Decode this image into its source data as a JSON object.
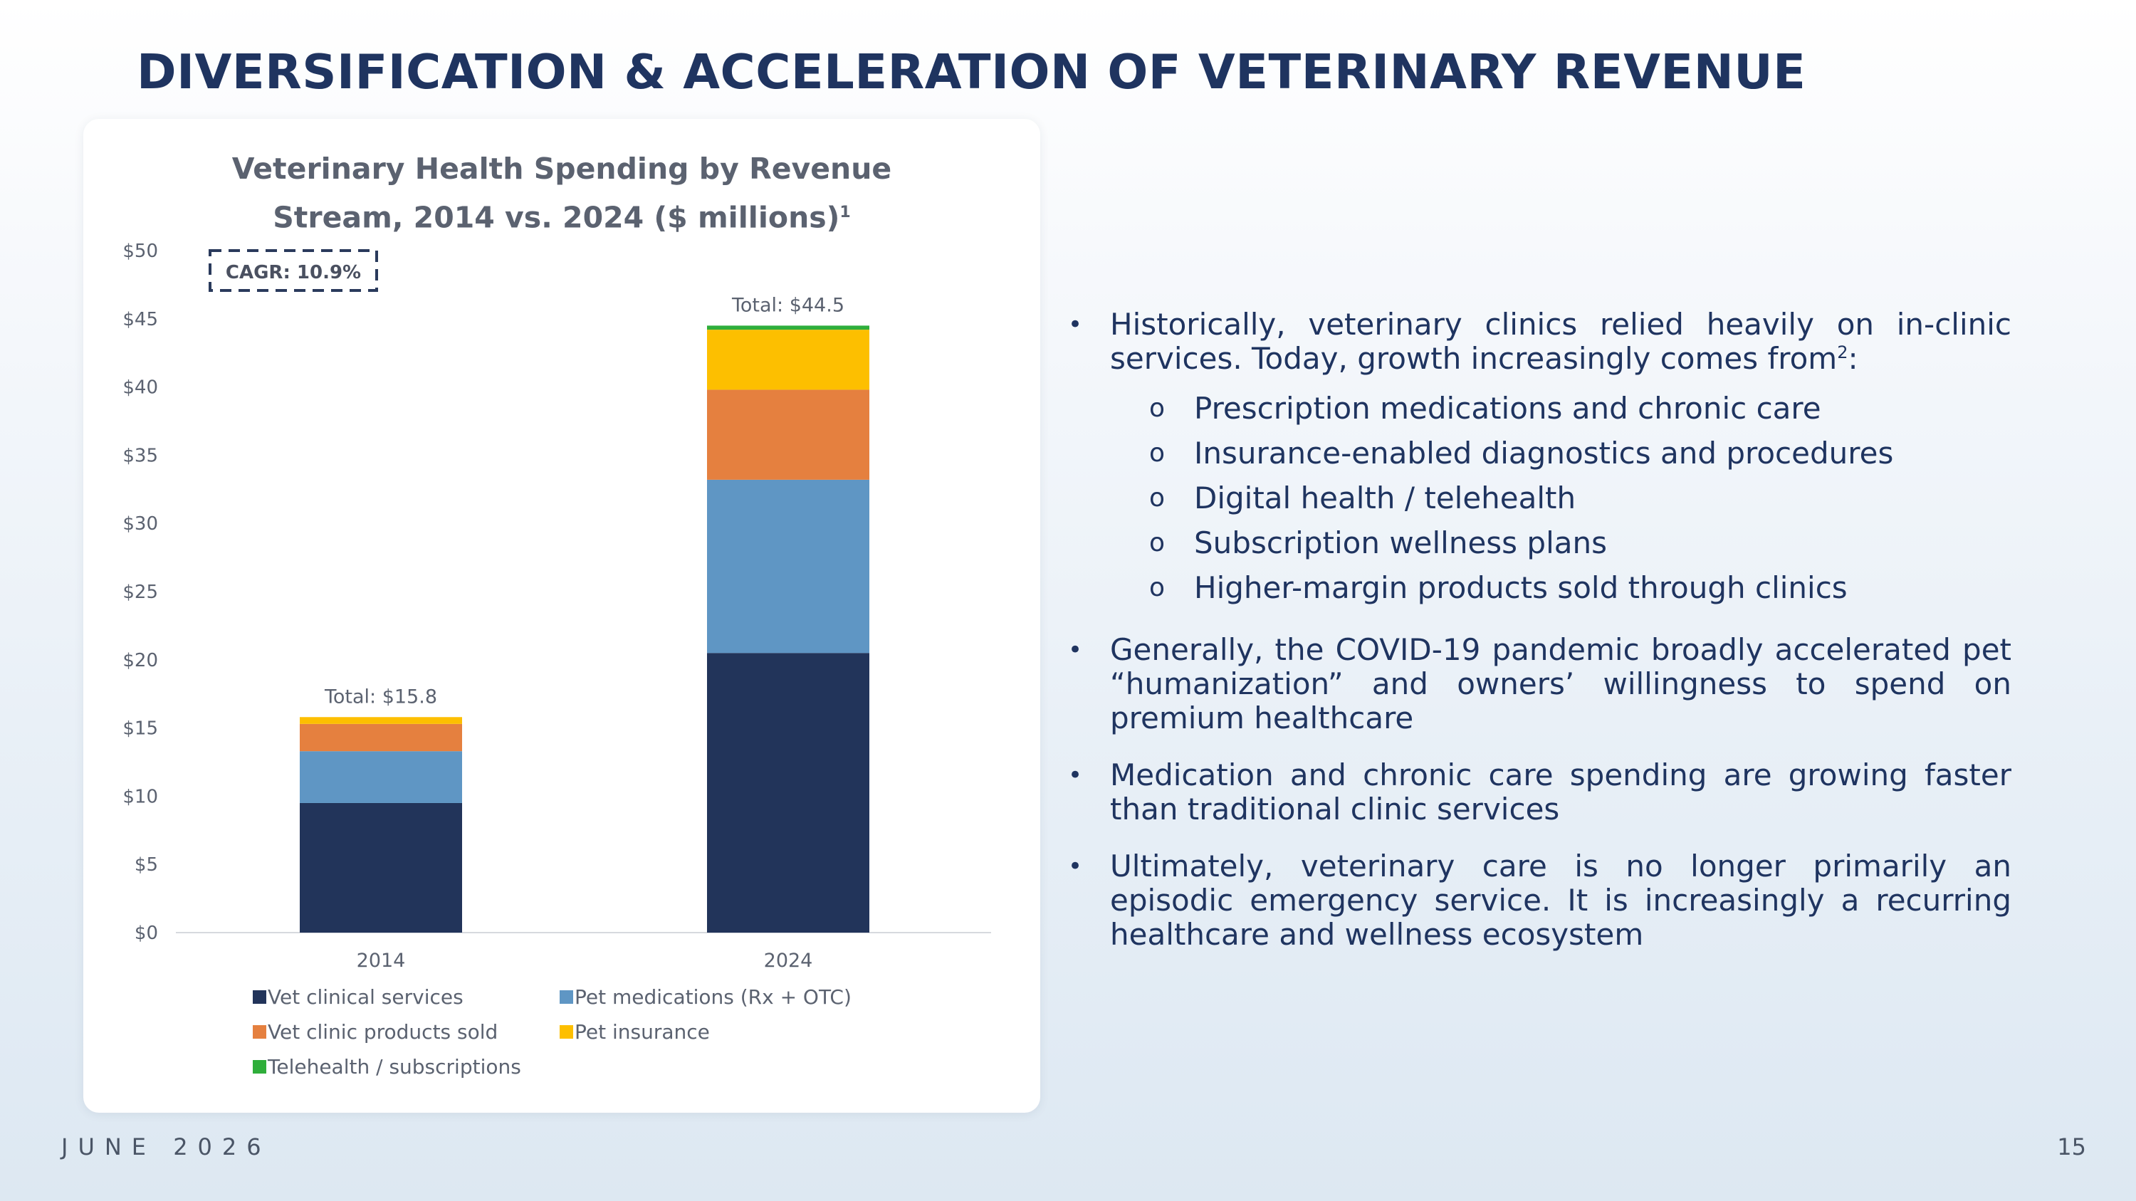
{
  "slide": {
    "title": "DIVERSIFICATION & ACCELERATION OF VETERINARY REVENUE",
    "footer_date": "JUNE 2026",
    "page_number": "15"
  },
  "bullets": {
    "b1_text": "Historically, veterinary clinics relied heavily on in-clinic services. Today, growth increasingly comes from",
    "b1_sup": "2",
    "b1_suffix": ":",
    "sub": [
      "Prescription medications and chronic care",
      "Insurance-enabled diagnostics and procedures",
      "Digital health / telehealth",
      "Subscription wellness plans",
      "Higher-margin products sold through clinics"
    ],
    "b2": "Generally, the COVID-19 pandemic broadly accelerated pet “humanization” and owners’ willingness to spend on premium healthcare",
    "b3": "Medication and chronic care spending are growing faster than traditional clinic services",
    "b4": "Ultimately, veterinary care is no longer primarily an episodic emergency service. It is increasingly a recurring healthcare and wellness ecosystem"
  },
  "chart_data": {
    "type": "bar",
    "stacked": true,
    "title": "Veterinary Health Spending by Revenue Stream, 2014 vs. 2024 ($ millions)",
    "title_line1": "Veterinary Health Spending by Revenue",
    "title_line2": "Stream, 2014 vs. 2024 ($ millions)",
    "title_sup": "1",
    "categories": [
      "2014",
      "2024"
    ],
    "series": [
      {
        "name": "Vet clinical services",
        "color": "#22345a",
        "values": [
          9.5,
          20.5
        ]
      },
      {
        "name": "Pet medications (Rx + OTC)",
        "color": "#5f96c4",
        "values": [
          3.8,
          12.7
        ]
      },
      {
        "name": "Vet clinic products sold",
        "color": "#e5803f",
        "values": [
          2.0,
          6.6
        ]
      },
      {
        "name": "Pet insurance",
        "color": "#fdbf00",
        "values": [
          0.5,
          4.4
        ]
      },
      {
        "name": "Telehealth / subscriptions",
        "color": "#2fae3b",
        "values": [
          0.0,
          0.3
        ]
      }
    ],
    "totals_labels": [
      "Total: $15.8",
      "Total: $44.5"
    ],
    "ylim": [
      0,
      50
    ],
    "yticks": [
      "$0",
      "$5",
      "$10",
      "$15",
      "$20",
      "$25",
      "$30",
      "$35",
      "$40",
      "$45",
      "$50"
    ],
    "annotation": "CAGR: 10.9%",
    "legend_position": "bottom",
    "grid": false
  }
}
